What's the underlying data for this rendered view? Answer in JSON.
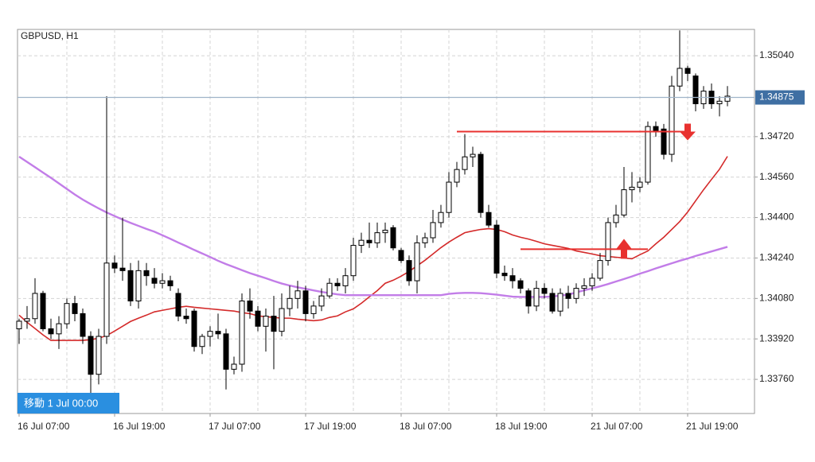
{
  "chart_data": {
    "type": "candlestick",
    "title": "GBPUSD, H1",
    "corner_label": "移動 1 Jul 00:00",
    "categories": [
      "16 Jul 07:00",
      null,
      null,
      null,
      null,
      null,
      null,
      null,
      null,
      null,
      null,
      null,
      "16 Jul 19:00",
      null,
      null,
      null,
      null,
      null,
      null,
      null,
      null,
      null,
      null,
      null,
      "17 Jul 07:00",
      null,
      null,
      null,
      null,
      null,
      null,
      null,
      null,
      null,
      null,
      null,
      "17 Jul 19:00",
      null,
      null,
      null,
      null,
      null,
      null,
      null,
      null,
      null,
      null,
      null,
      "18 Jul 07:00",
      null,
      null,
      null,
      null,
      null,
      null,
      null,
      null,
      null,
      null,
      null,
      "18 Jul 19:00",
      null,
      null,
      null,
      null,
      null,
      null,
      null,
      null,
      null,
      null,
      null,
      "21 Jul 07:00",
      null,
      null,
      null,
      null,
      null,
      null,
      null,
      null,
      null,
      null,
      null,
      "21 Jul 19:00",
      null,
      null,
      null,
      null,
      null
    ],
    "open": [
      1.3396,
      1.3399,
      1.34,
      1.341,
      1.3396,
      1.3394,
      1.3398,
      1.3406,
      1.3402,
      1.3393,
      1.3378,
      1.3393,
      1.3422,
      1.342,
      1.3419,
      1.3407,
      1.3419,
      1.3416,
      1.3414,
      1.3415,
      1.341,
      1.3401,
      1.3403,
      1.3389,
      1.3393,
      1.3395,
      1.3394,
      1.338,
      1.3382,
      1.3407,
      1.3403,
      1.3397,
      1.3401,
      1.3395,
      1.3404,
      1.3408,
      1.3411,
      1.3402,
      1.3405,
      1.3409,
      1.3414,
      1.3413,
      1.3417,
      1.3429,
      1.3431,
      1.343,
      1.3434,
      1.3436,
      1.3427,
      1.3423,
      1.3415,
      1.343,
      1.3432,
      1.3438,
      1.3442,
      1.3454,
      1.3459,
      1.3464,
      1.3465,
      1.3442,
      1.3437,
      1.3418,
      1.3417,
      1.3415,
      1.3411,
      1.3405,
      1.3412,
      1.341,
      1.3403,
      1.341,
      1.3408,
      1.3412,
      1.3413,
      1.3416,
      1.3423,
      1.3438,
      1.3441,
      1.3451,
      1.3452,
      1.3454,
      1.3476,
      1.3475,
      1.3465,
      1.3492,
      1.3499,
      1.3496,
      1.3485,
      1.349,
      1.3485,
      1.3486
    ],
    "high": [
      1.34,
      1.3405,
      1.3416,
      1.3411,
      1.34,
      1.3401,
      1.3408,
      1.3409,
      1.3404,
      1.3395,
      1.3396,
      1.3488,
      1.3425,
      1.344,
      1.3422,
      1.3423,
      1.3422,
      1.342,
      1.3418,
      1.3417,
      1.3412,
      1.3404,
      1.3404,
      1.3394,
      1.3397,
      1.3402,
      1.3396,
      1.3385,
      1.341,
      1.3412,
      1.3405,
      1.3404,
      1.3409,
      1.341,
      1.3413,
      1.3415,
      1.3413,
      1.3407,
      1.3412,
      1.3416,
      1.3416,
      1.342,
      1.3432,
      1.3434,
      1.3438,
      1.3438,
      1.3438,
      1.3437,
      1.3428,
      1.3425,
      1.3433,
      1.3434,
      1.3443,
      1.3445,
      1.3458,
      1.3462,
      1.3473,
      1.3468,
      1.3466,
      1.3445,
      1.3439,
      1.3421,
      1.342,
      1.3416,
      1.3412,
      1.3415,
      1.3414,
      1.3412,
      1.3412,
      1.3413,
      1.3414,
      1.3416,
      1.3418,
      1.3426,
      1.344,
      1.3445,
      1.346,
      1.3458,
      1.3456,
      1.3478,
      1.3478,
      1.3477,
      1.3496,
      1.3514,
      1.35,
      1.3497,
      1.3492,
      1.3493,
      1.3488,
      1.3492
    ],
    "low": [
      1.339,
      1.3396,
      1.3398,
      1.3395,
      1.3392,
      1.3388,
      1.3396,
      1.3399,
      1.339,
      1.337,
      1.3374,
      1.339,
      1.3418,
      1.3415,
      1.3405,
      1.3404,
      1.3413,
      1.3412,
      1.3412,
      1.3411,
      1.3399,
      1.3398,
      1.3387,
      1.3386,
      1.3389,
      1.3392,
      1.3372,
      1.3378,
      1.3379,
      1.34,
      1.3395,
      1.3387,
      1.338,
      1.3393,
      1.3401,
      1.3404,
      1.3399,
      1.34,
      1.3403,
      1.3408,
      1.3411,
      1.341,
      1.3415,
      1.3426,
      1.3428,
      1.3428,
      1.343,
      1.3427,
      1.3422,
      1.3413,
      1.341,
      1.3428,
      1.343,
      1.3436,
      1.344,
      1.3452,
      1.3457,
      1.346,
      1.344,
      1.3436,
      1.3416,
      1.3415,
      1.3412,
      1.341,
      1.3402,
      1.3403,
      1.3408,
      1.3402,
      1.3401,
      1.3404,
      1.3406,
      1.3409,
      1.3411,
      1.3415,
      1.3421,
      1.3436,
      1.344,
      1.3446,
      1.345,
      1.3453,
      1.3472,
      1.3463,
      1.3462,
      1.349,
      1.3494,
      1.3482,
      1.3483,
      1.3483,
      1.348,
      1.3484
    ],
    "close": [
      1.3399,
      1.34,
      1.341,
      1.3396,
      1.3394,
      1.3398,
      1.3406,
      1.3402,
      1.3393,
      1.3378,
      1.3393,
      1.3422,
      1.342,
      1.3419,
      1.3407,
      1.3419,
      1.3417,
      1.3414,
      1.3415,
      1.3413,
      1.3401,
      1.34,
      1.3389,
      1.3393,
      1.3395,
      1.3394,
      1.338,
      1.3382,
      1.3407,
      1.3403,
      1.3397,
      1.3401,
      1.3395,
      1.3404,
      1.3408,
      1.3411,
      1.3402,
      1.3405,
      1.3409,
      1.3414,
      1.3413,
      1.3417,
      1.3429,
      1.3431,
      1.343,
      1.3434,
      1.3435,
      1.3428,
      1.3423,
      1.3415,
      1.343,
      1.3432,
      1.3438,
      1.3442,
      1.3454,
      1.3459,
      1.3464,
      1.3465,
      1.3442,
      1.3437,
      1.3418,
      1.3417,
      1.3415,
      1.3412,
      1.3405,
      1.3412,
      1.341,
      1.3403,
      1.341,
      1.3408,
      1.3412,
      1.3413,
      1.3416,
      1.3423,
      1.3438,
      1.3441,
      1.3451,
      1.3452,
      1.3454,
      1.3476,
      1.3474,
      1.3465,
      1.3492,
      1.3499,
      1.3497,
      1.3485,
      1.349,
      1.3485,
      1.3486,
      1.3488
    ],
    "indicators": [
      {
        "color": "#d42a2a",
        "values": [
          1.34014,
          1.33986,
          1.33961,
          1.33936,
          1.33914,
          1.33914,
          1.33914,
          1.33914,
          1.33914,
          1.33917,
          1.33923,
          1.33933,
          1.33951,
          1.3397,
          1.33989,
          1.34002,
          1.34014,
          1.34027,
          1.34033,
          1.34039,
          1.34045,
          1.34049,
          1.34045,
          1.34042,
          1.34039,
          1.34036,
          1.34033,
          1.3403,
          1.34024,
          1.3402,
          1.34011,
          1.34008,
          1.34005,
          1.34002,
          1.34002,
          1.33998,
          1.33995,
          1.33992,
          1.33995,
          1.34005,
          1.34011,
          1.34027,
          1.34039,
          1.34061,
          1.34086,
          1.34111,
          1.3414,
          1.34152,
          1.34168,
          1.34187,
          1.34209,
          1.34231,
          1.34256,
          1.34281,
          1.34303,
          1.34322,
          1.3434,
          1.34347,
          1.34353,
          1.34356,
          1.34353,
          1.34344,
          1.34331,
          1.34322,
          1.34315,
          1.34306,
          1.34296,
          1.3429,
          1.34284,
          1.34278,
          1.34268,
          1.34262,
          1.34256,
          1.34249,
          1.34246,
          1.34243,
          1.3424,
          1.34237,
          1.34253,
          1.34268,
          1.34296,
          1.34322,
          1.34353,
          1.34384,
          1.34422,
          1.34466,
          1.3451,
          1.34551,
          1.34591,
          1.34642
        ]
      },
      {
        "color": "#c27de8",
        "values": [
          1.34641,
          1.3462,
          1.34599,
          1.34578,
          1.34557,
          1.34535,
          1.34513,
          1.34491,
          1.34471,
          1.34453,
          1.34436,
          1.3442,
          1.34406,
          1.34392,
          1.34379,
          1.34367,
          1.34355,
          1.34344,
          1.3433,
          1.34316,
          1.34301,
          1.34287,
          1.34272,
          1.34258,
          1.34244,
          1.34229,
          1.34216,
          1.34204,
          1.34192,
          1.3418,
          1.3417,
          1.3416,
          1.34149,
          1.34139,
          1.34131,
          1.34124,
          1.34118,
          1.34112,
          1.34106,
          1.34101,
          1.34096,
          1.34093,
          1.34093,
          1.34093,
          1.34093,
          1.34093,
          1.34093,
          1.34093,
          1.34093,
          1.34093,
          1.34093,
          1.34093,
          1.34093,
          1.34093,
          1.34098,
          1.34101,
          1.34102,
          1.34102,
          1.34101,
          1.34098,
          1.34095,
          1.34091,
          1.34087,
          1.34086,
          1.34086,
          1.34086,
          1.34086,
          1.34088,
          1.34091,
          1.34095,
          1.34104,
          1.34112,
          1.3412,
          1.34128,
          1.34137,
          1.34147,
          1.34157,
          1.34167,
          1.34178,
          1.34188,
          1.34199,
          1.34209,
          1.34219,
          1.34229,
          1.34238,
          1.34248,
          1.34257,
          1.34266,
          1.34275,
          1.34284
        ]
      }
    ],
    "levels": [
      {
        "price": 1.3474,
        "start": 55,
        "end": 84,
        "arrow": "down",
        "arrow_at": 84,
        "color": "#e8312f"
      },
      {
        "price": 1.34275,
        "start": 63,
        "end": 79,
        "arrow": "up",
        "arrow_at": 76,
        "color": "#e8312f"
      }
    ],
    "last_price": {
      "value": 1.34875,
      "label": "1.34875"
    },
    "ylim": [
      1.33625,
      1.35144
    ],
    "yticks": [
      {
        "value": 1.3504,
        "label": "1.35040"
      },
      {
        "value": 1.3472,
        "label": "1.34720"
      },
      {
        "value": 1.3456,
        "label": "1.34560"
      },
      {
        "value": 1.344,
        "label": "1.34400"
      },
      {
        "value": 1.3424,
        "label": "1.34240"
      },
      {
        "value": 1.3408,
        "label": "1.34080"
      },
      {
        "value": 1.3392,
        "label": "1.33920"
      },
      {
        "value": 1.3376,
        "label": "1.33760"
      }
    ],
    "grid": true
  }
}
